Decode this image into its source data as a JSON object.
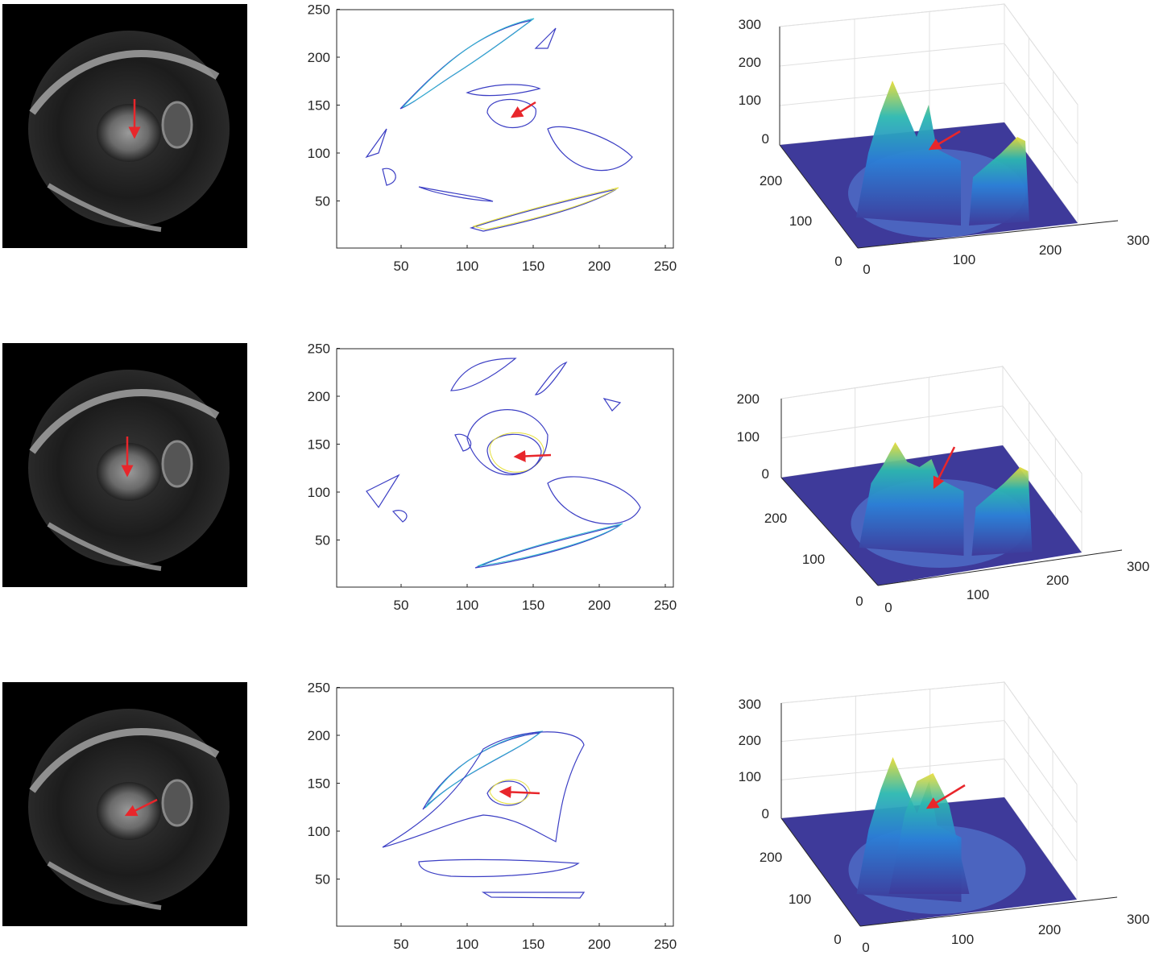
{
  "figure": {
    "rows": [
      {
        "mri_panel": "cardiac MRI slice 1"
      },
      {
        "mri_panel": "cardiac MRI slice 2"
      },
      {
        "mri_panel": "cardiac MRI slice 3"
      }
    ]
  },
  "colors": {
    "arrow": "#e8262b",
    "contour_low": "#3b3ec4",
    "contour_mid": "#2fb8d0",
    "contour_high": "#e6e03a",
    "surface_base": "#3e3a9a",
    "axis": "#262626",
    "grid": "#e0e0e0"
  },
  "chart_data": [
    {
      "type": "contour",
      "row": 1,
      "xlim": [
        0,
        256
      ],
      "ylim": [
        0,
        256
      ],
      "xticks": [
        "50",
        "100",
        "150",
        "200",
        "250"
      ],
      "yticks": [
        "50",
        "100",
        "150",
        "200",
        "250"
      ],
      "grid": false,
      "annotation": "red arrow"
    },
    {
      "type": "surface",
      "row": 1,
      "xlim": [
        0,
        300
      ],
      "ylim": [
        0,
        250
      ],
      "zlim": [
        0,
        300
      ],
      "xticks": [
        "0",
        "100",
        "200",
        "300"
      ],
      "yticks": [
        "0",
        "100",
        "200"
      ],
      "zticks": [
        "0",
        "100",
        "200",
        "300"
      ],
      "grid": true,
      "colormap": "parula",
      "annotation": "red arrow"
    },
    {
      "type": "contour",
      "row": 2,
      "xlim": [
        0,
        256
      ],
      "ylim": [
        0,
        256
      ],
      "xticks": [
        "50",
        "100",
        "150",
        "200",
        "250"
      ],
      "yticks": [
        "50",
        "100",
        "150",
        "200",
        "250"
      ],
      "grid": false,
      "annotation": "red arrow"
    },
    {
      "type": "surface",
      "row": 2,
      "xlim": [
        0,
        300
      ],
      "ylim": [
        0,
        250
      ],
      "zlim": [
        0,
        200
      ],
      "xticks": [
        "0",
        "100",
        "200",
        "300"
      ],
      "yticks": [
        "0",
        "100",
        "200"
      ],
      "zticks": [
        "0",
        "100",
        "200"
      ],
      "grid": true,
      "colormap": "parula",
      "annotation": "red arrow"
    },
    {
      "type": "contour",
      "row": 3,
      "xlim": [
        0,
        256
      ],
      "ylim": [
        0,
        256
      ],
      "xticks": [
        "50",
        "100",
        "150",
        "200",
        "250"
      ],
      "yticks": [
        "50",
        "100",
        "150",
        "200",
        "250"
      ],
      "grid": false,
      "annotation": "red arrow"
    },
    {
      "type": "surface",
      "row": 3,
      "xlim": [
        0,
        300
      ],
      "ylim": [
        0,
        250
      ],
      "zlim": [
        0,
        300
      ],
      "xticks": [
        "0",
        "100",
        "200",
        "300"
      ],
      "yticks": [
        "0",
        "100",
        "200"
      ],
      "zticks": [
        "0",
        "100",
        "200",
        "300"
      ],
      "grid": true,
      "colormap": "parula",
      "annotation": "red arrow"
    }
  ]
}
